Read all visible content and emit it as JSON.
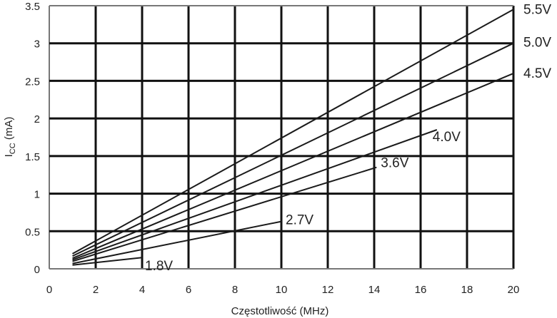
{
  "chart_data": {
    "type": "line",
    "title": "",
    "xlabel": "Częstotliwość (MHz)",
    "ylabel": {
      "main": "I",
      "sub": "CC",
      "rest": " (mA)"
    },
    "xlim": [
      0,
      20
    ],
    "ylim": [
      0,
      3.5
    ],
    "x_ticks": [
      0,
      2,
      4,
      6,
      8,
      10,
      12,
      14,
      16,
      18,
      20
    ],
    "y_ticks": [
      0,
      0.5,
      1,
      1.5,
      2,
      2.5,
      3,
      3.5
    ],
    "x_tick_labels": [
      "0",
      "2",
      "4",
      "6",
      "8",
      "10",
      "12",
      "14",
      "16",
      "18",
      "20"
    ],
    "y_tick_labels": [
      "0",
      "0.5",
      "1",
      "1.5",
      "2",
      "2.5",
      "3",
      "3.5"
    ],
    "grid": true,
    "series": [
      {
        "name": "5.5V",
        "x": [
          1,
          20
        ],
        "y": [
          0.2,
          3.45
        ]
      },
      {
        "name": "5.0V",
        "x": [
          1,
          20
        ],
        "y": [
          0.17,
          3.0
        ]
      },
      {
        "name": "4.5V",
        "x": [
          1,
          20
        ],
        "y": [
          0.14,
          2.6
        ]
      },
      {
        "name": "4.0V",
        "x": [
          1,
          16.7
        ],
        "y": [
          0.12,
          1.85
        ]
      },
      {
        "name": "3.6V",
        "x": [
          1,
          14.1
        ],
        "y": [
          0.1,
          1.35
        ]
      },
      {
        "name": "2.7V",
        "x": [
          1,
          10
        ],
        "y": [
          0.07,
          0.63
        ]
      },
      {
        "name": "1.8V",
        "x": [
          1,
          4
        ],
        "y": [
          0.05,
          0.15
        ]
      }
    ]
  }
}
